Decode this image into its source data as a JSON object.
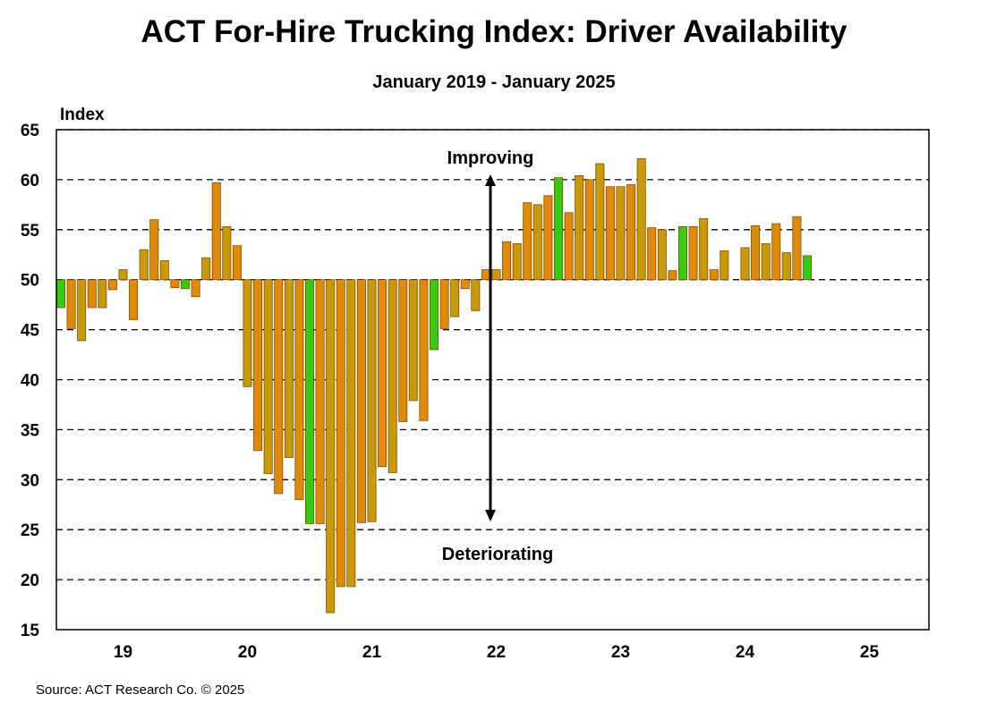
{
  "chart_data": {
    "type": "bar",
    "title": "ACT For-Hire Trucking Index: Driver Availability",
    "subtitle": "January 2019 - January 2025",
    "ylabel": "Index",
    "xlabel": "",
    "ylim": [
      15,
      65
    ],
    "baseline": 50,
    "yticks": [
      15,
      20,
      25,
      30,
      35,
      40,
      45,
      50,
      55,
      60,
      65
    ],
    "xtick_labels": [
      "19",
      "20",
      "21",
      "22",
      "23",
      "24",
      "25"
    ],
    "grid": true,
    "start_month": "2019-01",
    "values": [
      47.2,
      45.1,
      43.9,
      47.2,
      47.2,
      49.0,
      51.0,
      46.0,
      53.0,
      56.0,
      51.9,
      49.2,
      49.1,
      48.3,
      52.2,
      59.7,
      55.3,
      53.4,
      39.3,
      32.9,
      30.6,
      28.6,
      32.2,
      28.0,
      25.6,
      25.6,
      16.7,
      19.3,
      19.3,
      25.7,
      25.8,
      31.3,
      30.7,
      35.8,
      37.9,
      35.9,
      43.0,
      45.1,
      46.3,
      49.1,
      46.9,
      51.0,
      51.0,
      53.8,
      53.6,
      57.7,
      57.5,
      58.4,
      60.2,
      56.7,
      60.4,
      60.0,
      61.6,
      59.3,
      59.3,
      59.5,
      62.1,
      55.2,
      55.0,
      50.9,
      55.3,
      55.3,
      56.1,
      51.0,
      52.9,
      null,
      53.2,
      55.4,
      53.6,
      55.6,
      52.7,
      56.3,
      52.4
    ],
    "annotations": {
      "up": "Improving",
      "down": "Deteriorating"
    },
    "colors": {
      "bar": "#e08a0a",
      "bar_alt": "#c99a08",
      "january_bar": "#33cc11",
      "bar_stroke": "#8a4a00",
      "arrow": "#000000"
    }
  },
  "source": "Source: ACT Research Co. © 2025"
}
